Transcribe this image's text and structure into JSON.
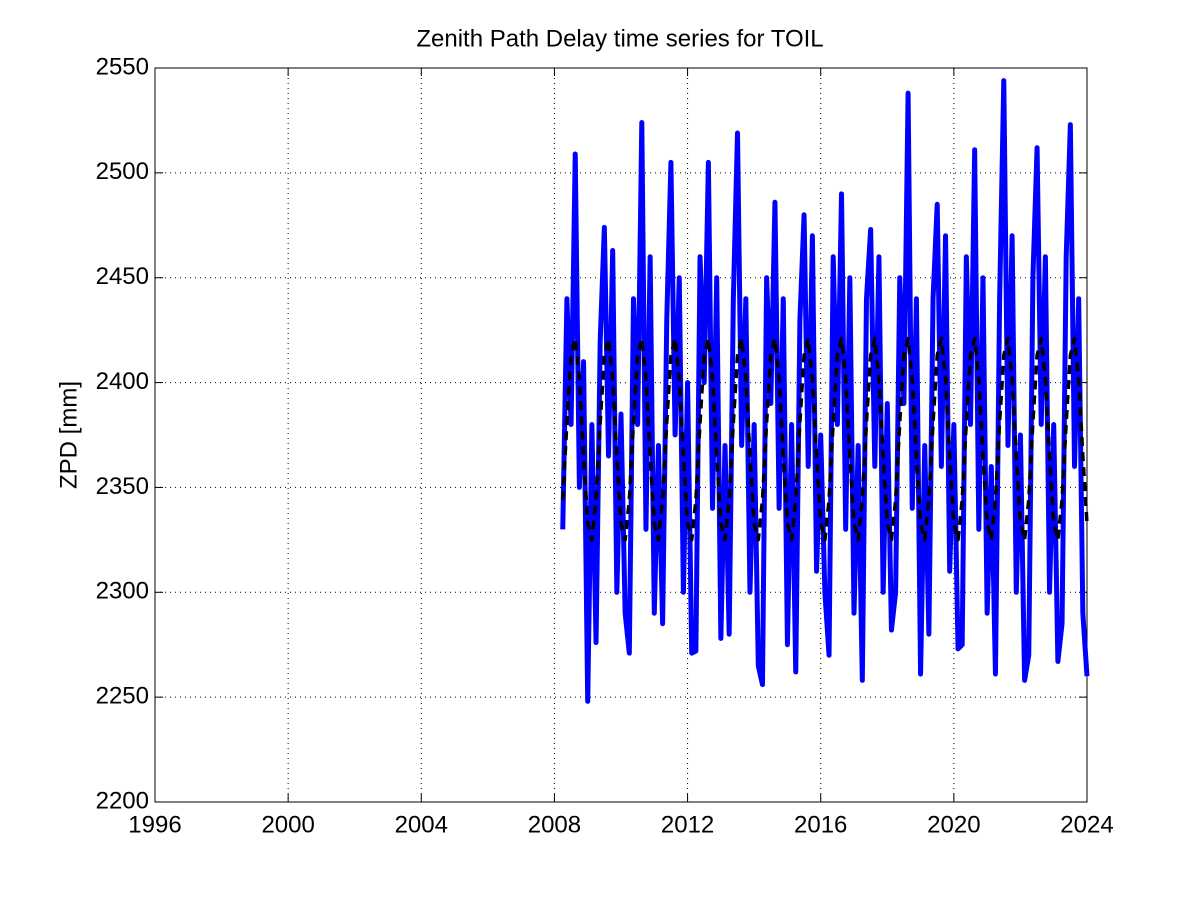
{
  "chart_data": {
    "type": "line",
    "title": "Zenith Path Delay time series for TOIL",
    "y_label": "ZPD [mm]",
    "xlim": [
      1996,
      2024
    ],
    "ylim": [
      2200,
      2550
    ],
    "xticks": [
      1996,
      2000,
      2004,
      2008,
      2012,
      2016,
      2020,
      2024
    ],
    "yticks": [
      2200,
      2250,
      2300,
      2350,
      2400,
      2450,
      2500,
      2550
    ],
    "grid": true,
    "x": [
      2008.25,
      2008.375,
      2008.5,
      2008.625,
      2008.75,
      2008.875,
      2009,
      2009.125,
      2009.25,
      2009.375,
      2009.5,
      2009.625,
      2009.75,
      2009.875,
      2010,
      2010.125,
      2010.25,
      2010.375,
      2010.5,
      2010.625,
      2010.75,
      2010.875,
      2011,
      2011.125,
      2011.25,
      2011.375,
      2011.5,
      2011.625,
      2011.75,
      2011.875,
      2012,
      2012.125,
      2012.25,
      2012.375,
      2012.5,
      2012.625,
      2012.75,
      2012.875,
      2013,
      2013.125,
      2013.25,
      2013.375,
      2013.5,
      2013.625,
      2013.75,
      2013.875,
      2014,
      2014.125,
      2014.25,
      2014.375,
      2014.5,
      2014.625,
      2014.75,
      2014.875,
      2015,
      2015.125,
      2015.25,
      2015.375,
      2015.5,
      2015.625,
      2015.75,
      2015.875,
      2016,
      2016.125,
      2016.25,
      2016.375,
      2016.5,
      2016.625,
      2016.75,
      2016.875,
      2017,
      2017.125,
      2017.25,
      2017.375,
      2017.5,
      2017.625,
      2017.75,
      2017.875,
      2018,
      2018.125,
      2018.25,
      2018.375,
      2018.5,
      2018.625,
      2018.75,
      2018.875,
      2019,
      2019.125,
      2019.25,
      2019.375,
      2019.5,
      2019.625,
      2019.75,
      2019.875,
      2020,
      2020.125,
      2020.25,
      2020.375,
      2020.5,
      2020.625,
      2020.75,
      2020.875,
      2021,
      2021.125,
      2021.25,
      2021.375,
      2021.5,
      2021.625,
      2021.75,
      2021.875,
      2022,
      2022.125,
      2022.25,
      2022.375,
      2022.5,
      2022.625,
      2022.75,
      2022.875,
      2023,
      2023.125,
      2023.25,
      2023.375,
      2023.5,
      2023.625,
      2023.75,
      2023.875,
      2024
    ],
    "series": [
      {
        "color": "#0000ff",
        "values": [
          2330,
          2440,
          2380,
          2509,
          2350,
          2410,
          2248,
          2380,
          2276,
          2420,
          2474,
          2365,
          2463,
          2300,
          2385,
          2290,
          2271,
          2440,
          2380,
          2524,
          2330,
          2460,
          2290,
          2370,
          2285,
          2430,
          2505,
          2375,
          2450,
          2300,
          2400,
          2271,
          2272,
          2460,
          2400,
          2505,
          2340,
          2450,
          2278,
          2370,
          2280,
          2440,
          2519,
          2370,
          2440,
          2300,
          2380,
          2265,
          2256,
          2450,
          2390,
          2486,
          2340,
          2440,
          2275,
          2380,
          2262,
          2430,
          2480,
          2360,
          2470,
          2310,
          2375,
          2300,
          2270,
          2460,
          2380,
          2490,
          2330,
          2450,
          2290,
          2370,
          2258,
          2440,
          2473,
          2360,
          2460,
          2300,
          2390,
          2282,
          2300,
          2450,
          2390,
          2538,
          2340,
          2440,
          2261,
          2370,
          2280,
          2440,
          2485,
          2360,
          2470,
          2310,
          2380,
          2273,
          2275,
          2460,
          2380,
          2511,
          2330,
          2450,
          2290,
          2360,
          2261,
          2440,
          2544,
          2370,
          2470,
          2300,
          2375,
          2258,
          2270,
          2450,
          2512,
          2380,
          2460,
          2300,
          2380,
          2267,
          2285,
          2460,
          2523,
          2360,
          2440,
          2290,
          2260
        ]
      },
      {
        "color": "#000000",
        "dashed": true,
        "values": [
          2344,
          2381,
          2413,
          2421,
          2402,
          2365,
          2333,
          2325,
          2344,
          2381,
          2413,
          2421,
          2402,
          2365,
          2333,
          2325,
          2344,
          2381,
          2413,
          2421,
          2402,
          2365,
          2333,
          2325,
          2344,
          2381,
          2413,
          2421,
          2402,
          2365,
          2333,
          2325,
          2344,
          2381,
          2413,
          2421,
          2402,
          2365,
          2333,
          2325,
          2344,
          2381,
          2413,
          2421,
          2402,
          2365,
          2333,
          2325,
          2344,
          2381,
          2413,
          2421,
          2402,
          2365,
          2333,
          2325,
          2344,
          2381,
          2413,
          2421,
          2402,
          2365,
          2333,
          2325,
          2344,
          2381,
          2413,
          2421,
          2402,
          2365,
          2333,
          2325,
          2344,
          2381,
          2413,
          2421,
          2402,
          2365,
          2333,
          2325,
          2344,
          2381,
          2413,
          2421,
          2402,
          2365,
          2333,
          2325,
          2344,
          2381,
          2413,
          2421,
          2402,
          2365,
          2333,
          2325,
          2344,
          2381,
          2413,
          2421,
          2402,
          2365,
          2333,
          2325,
          2344,
          2381,
          2413,
          2421,
          2402,
          2365,
          2333,
          2325,
          2344,
          2381,
          2413,
          2421,
          2402,
          2365,
          2333,
          2325,
          2344,
          2381,
          2413,
          2421,
          2402,
          2365,
          2333
        ]
      }
    ]
  }
}
